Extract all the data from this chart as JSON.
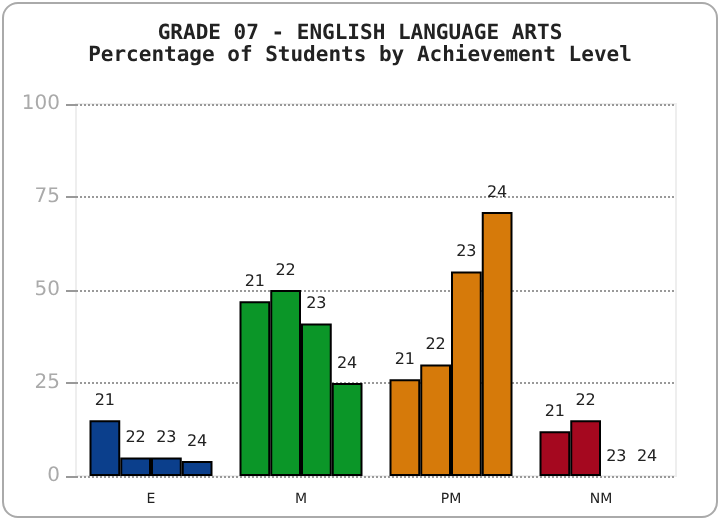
{
  "chart_data": {
    "type": "bar",
    "title": "GRADE 07 - ENGLISH LANGUAGE ARTS",
    "subtitle": "Percentage of Students by Achievement Level",
    "categories": [
      "E",
      "M",
      "PM",
      "NM"
    ],
    "series": [
      {
        "name": "21",
        "colors": [
          "#0b3f8c",
          "#0b9628",
          "#d67a0a",
          "#a5081f"
        ],
        "values": [
          15,
          47,
          26,
          12
        ]
      },
      {
        "name": "22",
        "colors": [
          "#0b3f8c",
          "#0b9628",
          "#d67a0a",
          "#a5081f"
        ],
        "values": [
          5,
          50,
          30,
          15
        ]
      },
      {
        "name": "23",
        "colors": [
          "#0b3f8c",
          "#0b9628",
          "#d67a0a",
          "#a5081f"
        ],
        "values": [
          5,
          41,
          55,
          0
        ]
      },
      {
        "name": "24",
        "colors": [
          "#0b3f8c",
          "#0b9628",
          "#d67a0a",
          "#a5081f"
        ],
        "values": [
          4,
          25,
          71,
          0
        ]
      }
    ],
    "ylim": [
      0,
      100
    ],
    "yticks": [
      0,
      25,
      50,
      75,
      100
    ],
    "grid": "y"
  }
}
